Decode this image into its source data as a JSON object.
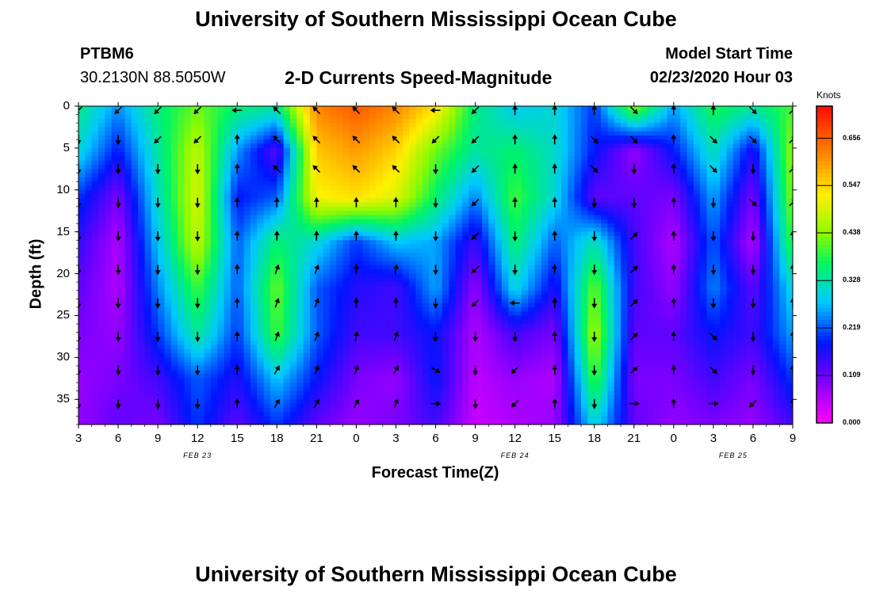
{
  "header": {
    "title_top": "University of Southern Mississippi Ocean Cube",
    "title_bottom": "University of Southern Mississippi Ocean Cube",
    "station_id": "PTBM6",
    "station_coords": "30.2130N 88.5050W",
    "plot_title": "2-D Currents Speed-Magnitude",
    "model_start_label": "Model Start Time",
    "model_start_value": "02/23/2020 Hour 03"
  },
  "chart_data": {
    "type": "heatmap",
    "title": "2-D Currents Speed-Magnitude",
    "xlabel": "Forecast Time(Z)",
    "ylabel": "Depth (ft)",
    "colorbar_label": "Knots",
    "colorbar_ticks": [
      "0.656",
      "0.547",
      "0.438",
      "0.328",
      "0.219",
      "0.109",
      "0.000"
    ],
    "colorbar_range": [
      0,
      0.73
    ],
    "x_ticks": [
      "3",
      "6",
      "9",
      "12",
      "15",
      "18",
      "21",
      "0",
      "3",
      "6",
      "9",
      "12",
      "15",
      "18",
      "21",
      "0",
      "3",
      "6",
      "9"
    ],
    "x_range_hours": [
      0,
      54
    ],
    "date_labels": [
      {
        "text": "FEB 23",
        "hour": 9
      },
      {
        "text": "FEB 24",
        "hour": 33
      },
      {
        "text": "FEB 25",
        "hour": 49.5
      }
    ],
    "y_ticks": [
      "0",
      "5",
      "10",
      "15",
      "20",
      "25",
      "30",
      "35"
    ],
    "y_range_ft": [
      0,
      38
    ],
    "speed_columns": [
      {
        "hour": 0,
        "speeds": [
          0.35,
          0.3,
          0.2,
          0.15,
          0.12,
          0.1,
          0.08,
          0.08
        ]
      },
      {
        "hour": 3,
        "speeds": [
          0.25,
          0.18,
          0.1,
          0.06,
          0.06,
          0.08,
          0.1,
          0.12
        ]
      },
      {
        "hour": 6,
        "speeds": [
          0.35,
          0.33,
          0.31,
          0.28,
          0.24,
          0.2,
          0.14,
          0.1
        ]
      },
      {
        "hour": 9,
        "speeds": [
          0.42,
          0.48,
          0.5,
          0.48,
          0.4,
          0.34,
          0.22,
          0.2
        ]
      },
      {
        "hour": 12,
        "speeds": [
          0.36,
          0.25,
          0.18,
          0.22,
          0.22,
          0.2,
          0.16,
          0.12
        ]
      },
      {
        "hour": 15,
        "speeds": [
          0.34,
          0.12,
          0.22,
          0.36,
          0.42,
          0.4,
          0.28,
          0.2
        ]
      },
      {
        "hour": 18,
        "speeds": [
          0.62,
          0.56,
          0.52,
          0.3,
          0.22,
          0.22,
          0.18,
          0.12
        ]
      },
      {
        "hour": 21,
        "speeds": [
          0.66,
          0.6,
          0.54,
          0.2,
          0.16,
          0.14,
          0.1,
          0.08
        ]
      },
      {
        "hour": 24,
        "speeds": [
          0.62,
          0.55,
          0.5,
          0.28,
          0.14,
          0.14,
          0.08,
          0.1
        ]
      },
      {
        "hour": 27,
        "speeds": [
          0.54,
          0.42,
          0.36,
          0.26,
          0.26,
          0.18,
          0.18,
          0.14
        ]
      },
      {
        "hour": 30,
        "speeds": [
          0.35,
          0.33,
          0.24,
          0.14,
          0.08,
          0.06,
          0.05,
          0.04
        ]
      },
      {
        "hour": 33,
        "speeds": [
          0.28,
          0.36,
          0.4,
          0.36,
          0.3,
          0.14,
          0.08,
          0.06
        ]
      },
      {
        "hour": 36,
        "speeds": [
          0.3,
          0.31,
          0.3,
          0.22,
          0.16,
          0.1,
          0.06,
          0.08
        ]
      },
      {
        "hour": 39,
        "speeds": [
          0.2,
          0.18,
          0.12,
          0.32,
          0.42,
          0.46,
          0.4,
          0.3
        ]
      },
      {
        "hour": 42,
        "speeds": [
          0.44,
          0.08,
          0.12,
          0.14,
          0.14,
          0.12,
          0.1,
          0.12
        ]
      },
      {
        "hour": 45,
        "speeds": [
          0.26,
          0.18,
          0.1,
          0.06,
          0.08,
          0.12,
          0.1,
          0.08
        ]
      },
      {
        "hour": 48,
        "speeds": [
          0.38,
          0.32,
          0.26,
          0.22,
          0.24,
          0.18,
          0.14,
          0.1
        ]
      },
      {
        "hour": 51,
        "speeds": [
          0.34,
          0.16,
          0.1,
          0.06,
          0.12,
          0.14,
          0.1,
          0.08
        ]
      },
      {
        "hour": 54,
        "speeds": [
          0.4,
          0.45,
          0.44,
          0.4,
          0.3,
          0.26,
          0.2,
          0.14
        ]
      }
    ],
    "arrow_depths_ft": [
      0.5,
      4,
      7.5,
      11.5,
      15.5,
      19.5,
      23.5,
      27.5,
      31.5,
      35.5
    ],
    "arrow_columns": [
      {
        "hour": 0,
        "dirs": [
          225,
          180,
          180,
          180,
          180,
          180,
          180,
          180,
          180,
          180
        ]
      },
      {
        "hour": 3,
        "dirs": [
          225,
          180,
          180,
          180,
          180,
          180,
          180,
          180,
          180,
          180
        ]
      },
      {
        "hour": 6,
        "dirs": [
          225,
          225,
          180,
          180,
          180,
          180,
          180,
          180,
          180,
          180
        ]
      },
      {
        "hour": 9,
        "dirs": [
          225,
          225,
          180,
          180,
          180,
          180,
          180,
          180,
          180,
          180
        ]
      },
      {
        "hour": 12,
        "dirs": [
          270,
          0,
          0,
          0,
          0,
          0,
          0,
          0,
          0,
          0
        ]
      },
      {
        "hour": 15,
        "dirs": [
          315,
          315,
          315,
          0,
          0,
          20,
          20,
          20,
          30,
          30
        ]
      },
      {
        "hour": 18,
        "dirs": [
          315,
          315,
          315,
          0,
          0,
          20,
          20,
          20,
          20,
          30
        ]
      },
      {
        "hour": 21,
        "dirs": [
          315,
          315,
          315,
          0,
          0,
          0,
          0,
          10,
          20,
          30
        ]
      },
      {
        "hour": 24,
        "dirs": [
          315,
          315,
          315,
          0,
          0,
          10,
          0,
          20,
          30,
          20
        ]
      },
      {
        "hour": 27,
        "dirs": [
          270,
          225,
          180,
          180,
          180,
          180,
          180,
          180,
          120,
          90
        ]
      },
      {
        "hour": 30,
        "dirs": [
          225,
          225,
          225,
          225,
          225,
          225,
          225,
          180,
          180,
          180
        ]
      },
      {
        "hour": 33,
        "dirs": [
          0,
          0,
          0,
          0,
          180,
          180,
          270,
          180,
          225,
          225
        ]
      },
      {
        "hour": 36,
        "dirs": [
          0,
          0,
          0,
          0,
          0,
          0,
          0,
          0,
          0,
          0
        ]
      },
      {
        "hour": 39,
        "dirs": [
          0,
          135,
          135,
          180,
          180,
          180,
          180,
          180,
          180,
          180
        ]
      },
      {
        "hour": 42,
        "dirs": [
          135,
          135,
          180,
          180,
          45,
          45,
          45,
          45,
          45,
          90
        ]
      },
      {
        "hour": 45,
        "dirs": [
          0,
          0,
          0,
          0,
          0,
          0,
          0,
          0,
          0,
          0
        ]
      },
      {
        "hour": 48,
        "dirs": [
          0,
          135,
          135,
          180,
          180,
          180,
          180,
          135,
          135,
          90
        ]
      },
      {
        "hour": 51,
        "dirs": [
          135,
          135,
          180,
          135,
          180,
          180,
          180,
          180,
          180,
          225
        ]
      },
      {
        "hour": 54,
        "dirs": [
          45,
          45,
          45,
          45,
          0,
          0,
          0,
          0,
          0,
          0
        ]
      }
    ]
  }
}
